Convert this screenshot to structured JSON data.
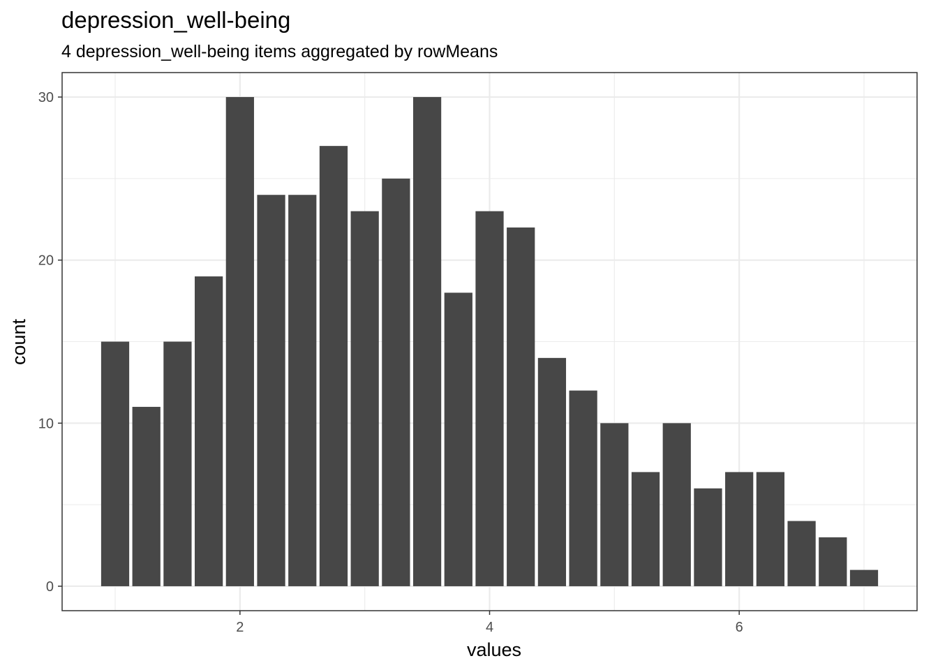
{
  "chart_data": {
    "type": "bar",
    "title": "depression_well-being",
    "subtitle": "4 depression_well-being items aggregated by rowMeans",
    "xlabel": "values",
    "ylabel": "count",
    "x": [
      1,
      1.25,
      1.5,
      1.75,
      2,
      2.25,
      2.5,
      2.75,
      3,
      3.25,
      3.5,
      3.75,
      4,
      4.25,
      4.5,
      4.75,
      5,
      5.25,
      5.5,
      5.75,
      6,
      6.25,
      6.5,
      6.75,
      7
    ],
    "values": [
      15,
      11,
      15,
      19,
      30,
      24,
      24,
      27,
      23,
      25,
      30,
      18,
      23,
      22,
      14,
      12,
      10,
      7,
      10,
      6,
      7,
      7,
      4,
      3,
      1
    ],
    "xlim": [
      0.575,
      7.425
    ],
    "ylim": [
      -1.5,
      31.5
    ],
    "xticks": [
      2,
      4,
      6
    ],
    "xtick_labels": [
      "2",
      "4",
      "6"
    ],
    "yticks": [
      0,
      10,
      20,
      30
    ],
    "ytick_labels": [
      "0",
      "10",
      "20",
      "30"
    ],
    "grid": true,
    "legend": "none",
    "colors": {
      "bar": "#474747",
      "grid": "#ebebeb",
      "border": "#333333",
      "background": "#ffffff"
    }
  }
}
